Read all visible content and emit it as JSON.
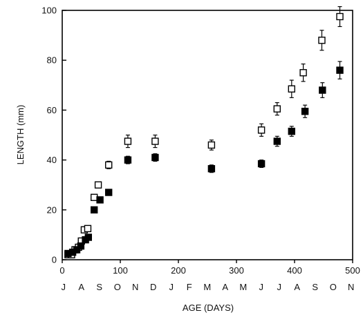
{
  "chart_data": {
    "type": "scatter",
    "xlabel": "AGE (DAYS)",
    "ylabel": "LENGTH (mm)",
    "xlim": [
      0,
      500
    ],
    "ylim": [
      0,
      100
    ],
    "xticks": [
      0,
      100,
      200,
      300,
      400,
      500
    ],
    "yticks": [
      0,
      20,
      40,
      60,
      80,
      100
    ],
    "grid": false,
    "legend": "none",
    "month_labels": [
      "J",
      "A",
      "S",
      "O",
      "N",
      "D",
      "J",
      "F",
      "M",
      "A",
      "M",
      "J",
      "J",
      "A",
      "S",
      "O",
      "N"
    ],
    "series": [
      {
        "marker": "open-square",
        "color": "#000000",
        "points": [
          {
            "x": 10,
            "y": 2,
            "err": 0
          },
          {
            "x": 16,
            "y": 2,
            "err": 0
          },
          {
            "x": 22,
            "y": 4,
            "err": 0
          },
          {
            "x": 28,
            "y": 5,
            "err": 0
          },
          {
            "x": 33,
            "y": 7.5,
            "err": 0
          },
          {
            "x": 38,
            "y": 12,
            "err": 0
          },
          {
            "x": 44,
            "y": 12.5,
            "err": 0
          },
          {
            "x": 55,
            "y": 25,
            "err": 0
          },
          {
            "x": 62,
            "y": 30,
            "err": 0
          },
          {
            "x": 80,
            "y": 38,
            "err": 1.5
          },
          {
            "x": 113,
            "y": 47.5,
            "err": 2.5
          },
          {
            "x": 160,
            "y": 47.5,
            "err": 2.5
          },
          {
            "x": 257,
            "y": 46,
            "err": 2
          },
          {
            "x": 343,
            "y": 52,
            "err": 2.5
          },
          {
            "x": 370,
            "y": 60.5,
            "err": 2.5
          },
          {
            "x": 395,
            "y": 68.5,
            "err": 3.5
          },
          {
            "x": 415,
            "y": 75,
            "err": 3.5
          },
          {
            "x": 447,
            "y": 88,
            "err": 4
          },
          {
            "x": 478,
            "y": 97.5,
            "err": 4
          }
        ]
      },
      {
        "marker": "filled-square",
        "color": "#000000",
        "points": [
          {
            "x": 10,
            "y": 2.5,
            "err": 0
          },
          {
            "x": 18,
            "y": 3,
            "err": 0
          },
          {
            "x": 25,
            "y": 4,
            "err": 0
          },
          {
            "x": 32,
            "y": 5.5,
            "err": 0
          },
          {
            "x": 40,
            "y": 8,
            "err": 0
          },
          {
            "x": 45,
            "y": 9,
            "err": 0
          },
          {
            "x": 55,
            "y": 20,
            "err": 0
          },
          {
            "x": 65,
            "y": 24,
            "err": 0
          },
          {
            "x": 80,
            "y": 27,
            "err": 0
          },
          {
            "x": 113,
            "y": 40,
            "err": 1.5
          },
          {
            "x": 160,
            "y": 41,
            "err": 1.5
          },
          {
            "x": 257,
            "y": 36.5,
            "err": 1.5
          },
          {
            "x": 343,
            "y": 38.5,
            "err": 1.5
          },
          {
            "x": 370,
            "y": 47.5,
            "err": 2
          },
          {
            "x": 395,
            "y": 51.5,
            "err": 2
          },
          {
            "x": 418,
            "y": 59.5,
            "err": 2.5
          },
          {
            "x": 448,
            "y": 68,
            "err": 3
          },
          {
            "x": 478,
            "y": 76,
            "err": 3.5
          }
        ]
      }
    ]
  }
}
